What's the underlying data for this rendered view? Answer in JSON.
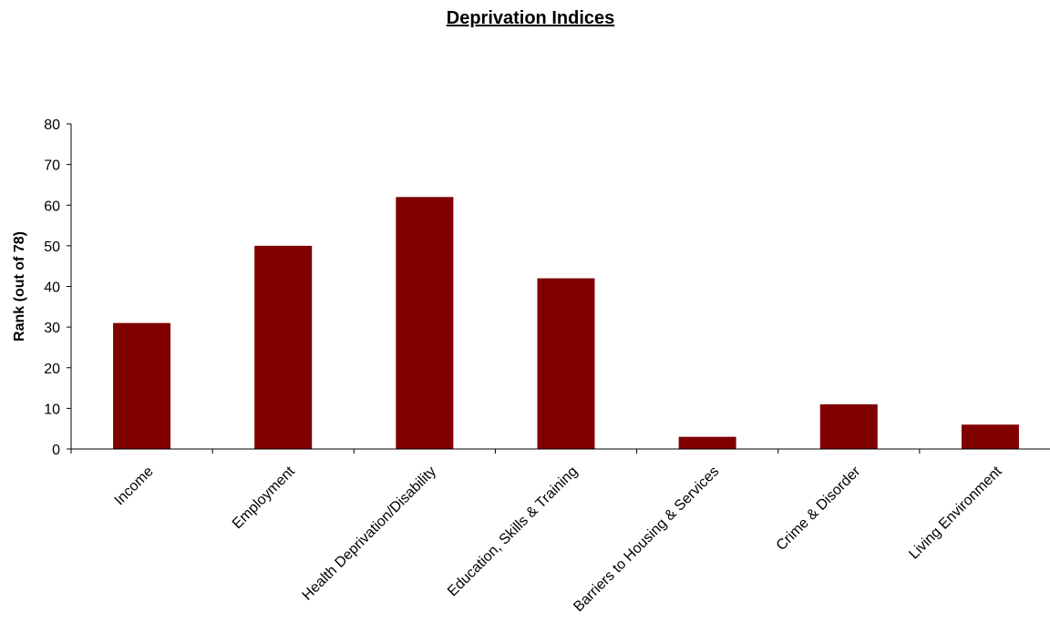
{
  "chart_data": {
    "type": "bar",
    "title": "Deprivation Indices",
    "xlabel": "",
    "ylabel": "Rank (out of 78)",
    "categories": [
      "Income",
      "Employment",
      "Health Deprivation/Disability",
      "Education, Skills & Training",
      "Barriers to Housing & Services",
      "Crime & Disorder",
      "Living Environment"
    ],
    "values": [
      31,
      50,
      62,
      42,
      3,
      11,
      6
    ],
    "ylim": [
      0,
      80
    ],
    "yticks": [
      0,
      10,
      20,
      30,
      40,
      50,
      60,
      70,
      80
    ],
    "grid": false,
    "legend": "none",
    "bar_color": "#800000"
  }
}
